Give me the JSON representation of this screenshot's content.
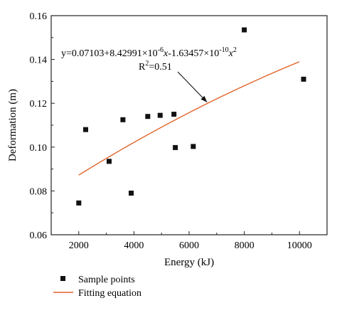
{
  "chart_data": {
    "type": "scatter",
    "xlabel": "Energy (kJ)",
    "ylabel": "Deformation (m)",
    "xlim": [
      1000,
      11000
    ],
    "ylim": [
      0.06,
      0.16
    ],
    "xticks": [
      2000,
      4000,
      6000,
      8000,
      10000
    ],
    "yticks": [
      0.06,
      0.08,
      0.1,
      0.12,
      0.14,
      0.16
    ],
    "xtick_labels": [
      "2000",
      "4000",
      "6000",
      "8000",
      "10000"
    ],
    "ytick_labels": [
      "0.06",
      "0.08",
      "0.10",
      "0.12",
      "0.14",
      "0.16"
    ],
    "grid": false,
    "legend_position": "bottom-left, outside plot",
    "series": [
      {
        "name": "Sample points",
        "kind": "scatter",
        "marker": "square",
        "color": "#111111",
        "x": [
          2000,
          2250,
          3100,
          3600,
          3900,
          4500,
          4950,
          5450,
          5500,
          6150,
          8000,
          10150
        ],
        "y": [
          0.0745,
          0.108,
          0.0935,
          0.1125,
          0.079,
          0.114,
          0.1145,
          0.115,
          0.0998,
          0.1003,
          0.1535,
          0.131
        ]
      },
      {
        "name": "Fitting equation",
        "kind": "line",
        "color": "#e0652a",
        "coefficients": [
          0.07103,
          8.42991e-06,
          -1.63457e-10
        ],
        "x_range": [
          2000,
          10000
        ]
      }
    ],
    "annotations": {
      "equation": "y=0.07103+8.42991×10-6x-1.63457×10-10x2",
      "r2": "R2=0.51",
      "arrow_target_x": 6650
    }
  }
}
